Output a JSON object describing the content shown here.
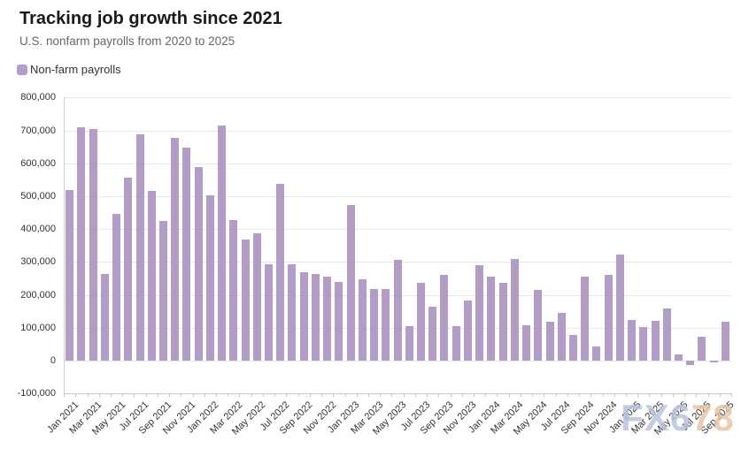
{
  "header": {
    "title": "Tracking job growth since 2021",
    "subtitle": "U.S. nonfarm payrolls from 2020 to 2025"
  },
  "legend": {
    "label": "Non-farm payrolls",
    "swatch_color": "#b39dc7"
  },
  "watermark": {
    "part1": "FX6",
    "part2": "78",
    "part1_color": "#b7c2de",
    "part2_color": "#e6c3a3"
  },
  "chart_data": {
    "type": "bar",
    "title": "Tracking job growth since 2021",
    "subtitle": "U.S. nonfarm payrolls from 2020 to 2025",
    "legend_entries": [
      "Non-farm payrolls"
    ],
    "legend_position": "top-left",
    "grid": true,
    "xlabel": "",
    "ylabel": "",
    "ylim": [
      -100000,
      800000
    ],
    "bar_color": "#b39dc7",
    "y_tick_values": [
      800000,
      700000,
      600000,
      500000,
      400000,
      300000,
      200000,
      100000,
      0,
      -100000
    ],
    "y_tick_labels": [
      "800,000",
      "700,000",
      "600,000",
      "500,000",
      "400,000",
      "300,000",
      "200,000",
      "100,000",
      "0",
      "-100,000"
    ],
    "x_tick_step": 2,
    "categories": [
      "Jan 2021",
      "Feb 2021",
      "Mar 2021",
      "Apr 2021",
      "May 2021",
      "Jun 2021",
      "Jul 2021",
      "Aug 2021",
      "Sep 2021",
      "Oct 2021",
      "Nov 2021",
      "Dec 2021",
      "Jan 2022",
      "Feb 2022",
      "Mar 2022",
      "Apr 2022",
      "May 2022",
      "Jun 2022",
      "Jul 2022",
      "Aug 2022",
      "Sep 2022",
      "Oct 2022",
      "Nov 2022",
      "Dec 2022",
      "Jan 2023",
      "Feb 2023",
      "Mar 2023",
      "Apr 2023",
      "May 2023",
      "Jun 2023",
      "Jul 2023",
      "Aug 2023",
      "Sep 2023",
      "Oct 2023",
      "Nov 2023",
      "Dec 2023",
      "Jan 2024",
      "Feb 2024",
      "Mar 2024",
      "Apr 2024",
      "May 2024",
      "Jun 2024",
      "Jul 2024",
      "Aug 2024",
      "Sep 2024",
      "Oct 2024",
      "Nov 2024",
      "Dec 2024",
      "Jan 2025",
      "Feb 2025",
      "Mar 2025",
      "Apr 2025",
      "May 2025",
      "Jun 2025",
      "Jul 2025",
      "Aug 2025",
      "Sep 2025"
    ],
    "series": [
      {
        "name": "Non-farm payrolls",
        "values": [
          520000,
          710000,
          704000,
          263000,
          447000,
          557000,
          689000,
          517000,
          424000,
          677000,
          647000,
          588000,
          504000,
          714000,
          428000,
          368000,
          386000,
          293000,
          537000,
          292000,
          269000,
          263000,
          256000,
          239000,
          472000,
          248000,
          217000,
          217000,
          306000,
          105000,
          236000,
          165000,
          262000,
          105000,
          182000,
          290000,
          256000,
          236000,
          310000,
          108000,
          216000,
          118000,
          144000,
          78000,
          255000,
          43000,
          261000,
          323000,
          125000,
          102000,
          120000,
          158000,
          19000,
          -13000,
          72000,
          -4000,
          119000
        ]
      }
    ]
  }
}
